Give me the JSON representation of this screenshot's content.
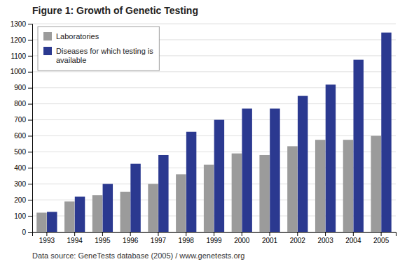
{
  "chart_data": {
    "type": "bar",
    "title": "Figure 1: Growth of Genetic Testing",
    "caption": "Data source: GeneTests database (2005) / www.genetests.org",
    "categories": [
      "1993",
      "1994",
      "1995",
      "1996",
      "1997",
      "1998",
      "1999",
      "2000",
      "2001",
      "2002",
      "2003",
      "2004",
      "2005"
    ],
    "series": [
      {
        "name": "Laboratories",
        "color": "#9b9b9b",
        "values": [
          120,
          190,
          230,
          250,
          300,
          360,
          420,
          490,
          480,
          535,
          575,
          575,
          600
        ]
      },
      {
        "name": "Diseases for which testing is\navailable",
        "color": "#2b3990",
        "values": [
          125,
          220,
          300,
          425,
          480,
          625,
          700,
          770,
          770,
          850,
          920,
          1075,
          1245
        ]
      }
    ],
    "ylim": [
      0,
      1300
    ],
    "yticks": [
      0,
      100,
      200,
      300,
      400,
      500,
      600,
      700,
      800,
      900,
      1000,
      1100,
      1200,
      1300
    ],
    "grid": true,
    "legend": "upper left"
  }
}
